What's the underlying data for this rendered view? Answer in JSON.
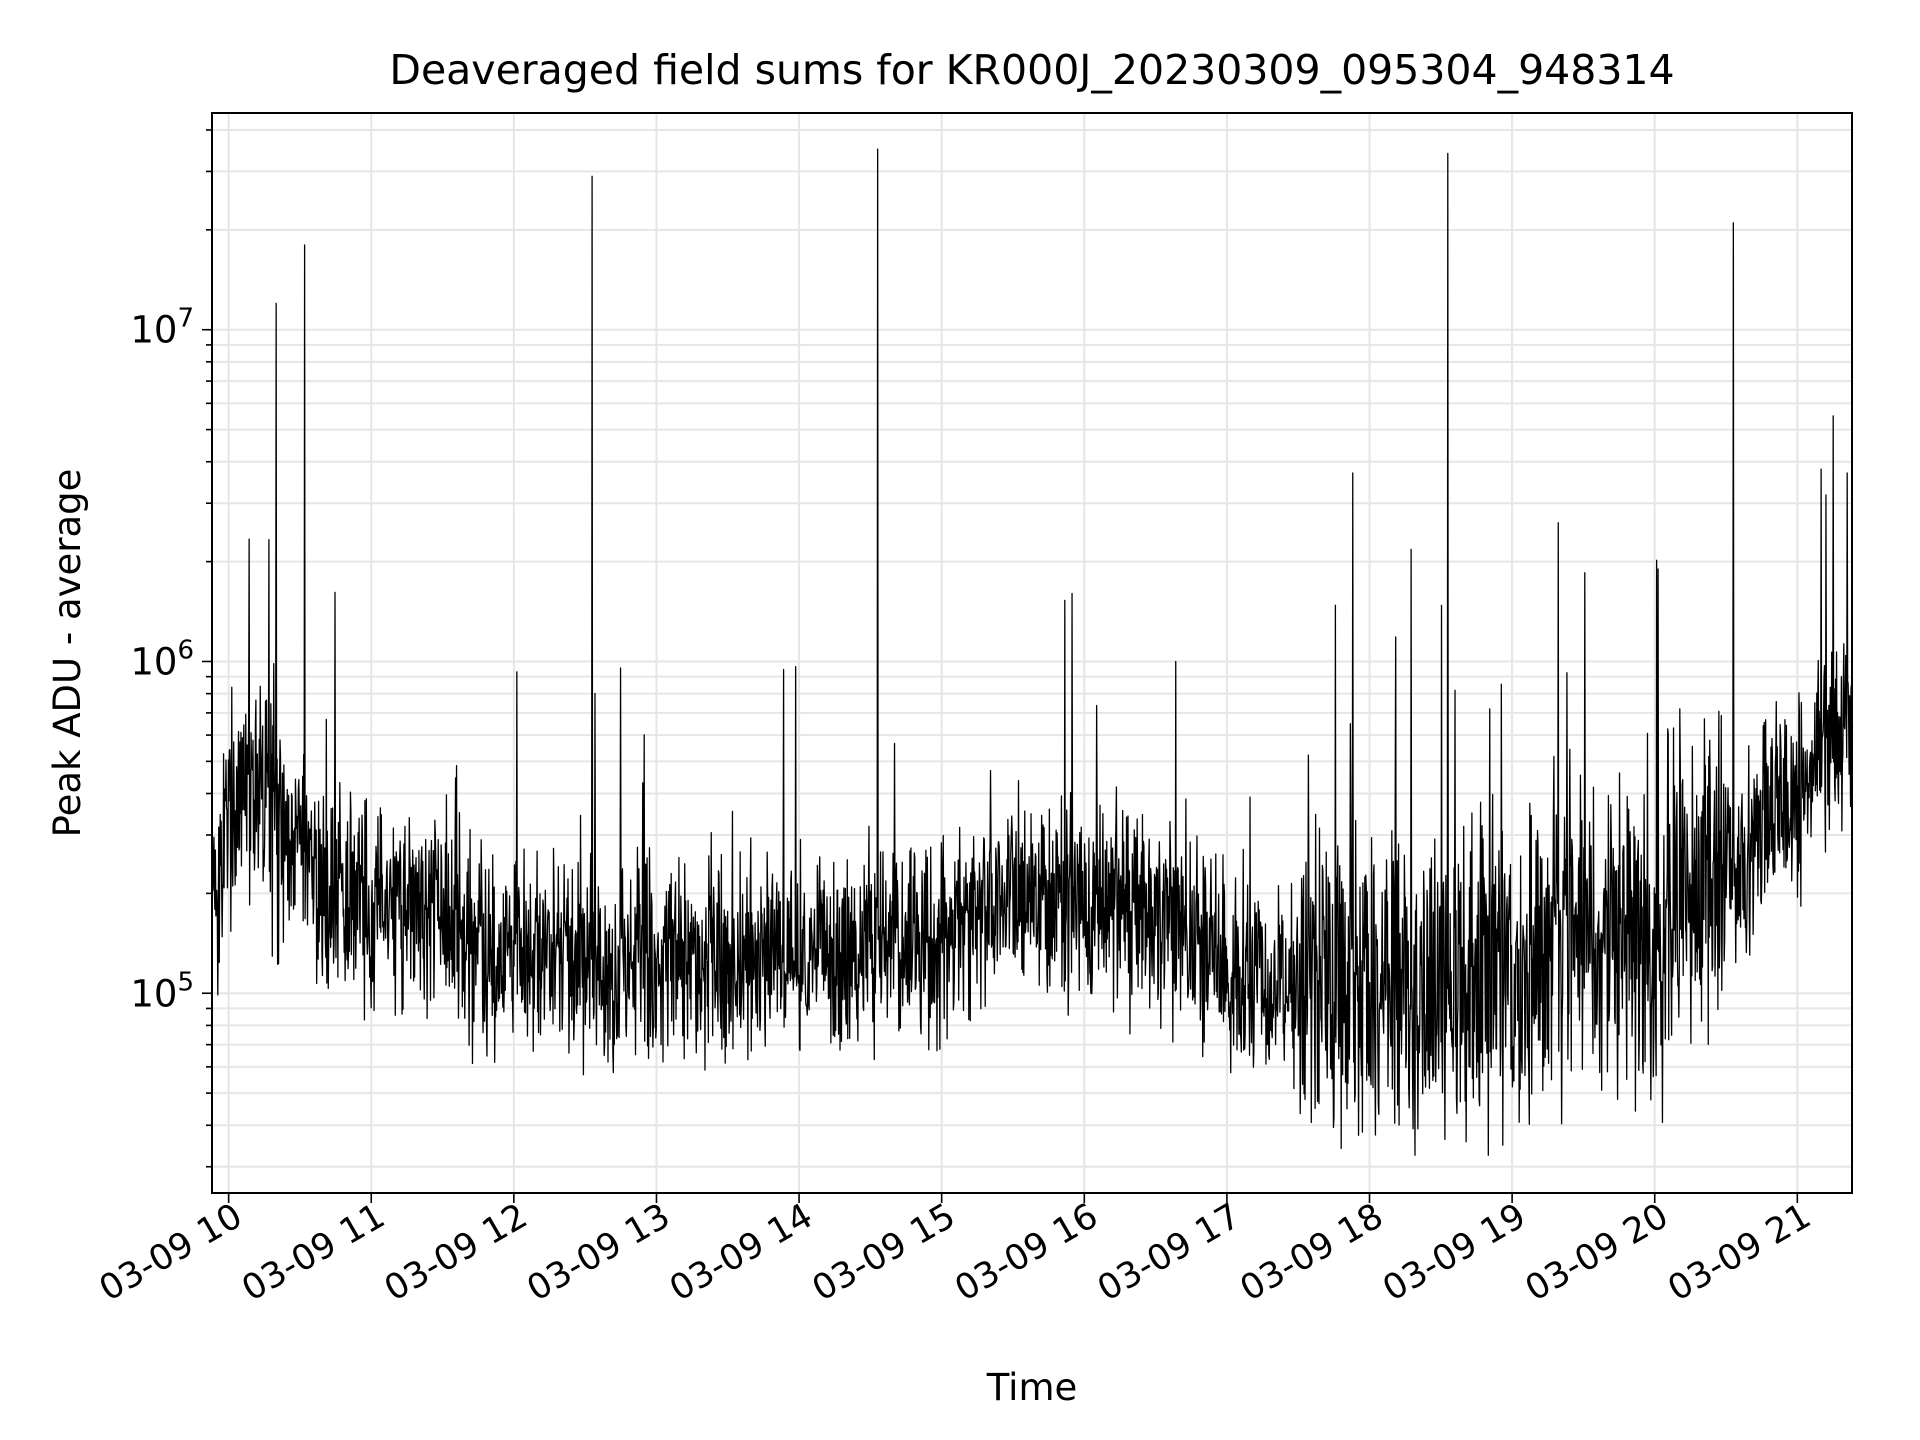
{
  "chart_data": {
    "type": "line",
    "title": "Deaveraged field sums for KR000J_20230309_095304_948314",
    "xlabel": "Time",
    "ylabel": "Peak ADU - average",
    "x_scale": "time",
    "y_scale": "log",
    "xlim": [
      "03-09 09:53",
      "03-09 21:23"
    ],
    "ylim": [
      25000,
      45000000
    ],
    "grid": true,
    "legend": "none",
    "x_ticks": [
      "03-09 10",
      "03-09 11",
      "03-09 12",
      "03-09 13",
      "03-09 14",
      "03-09 15",
      "03-09 16",
      "03-09 17",
      "03-09 18",
      "03-09 19",
      "03-09 20",
      "03-09 21"
    ],
    "y_ticks": [
      {
        "base": "10",
        "exp": "5",
        "value": 100000
      },
      {
        "base": "10",
        "exp": "6",
        "value": 1000000
      },
      {
        "base": "10",
        "exp": "7",
        "value": 10000000
      }
    ],
    "series": [
      {
        "color": "#000000",
        "baseline": [
          [
            "03-09 09:53",
            200000
          ],
          [
            "03-09 10:05",
            450000
          ],
          [
            "03-09 10:15",
            420000
          ],
          [
            "03-09 10:25",
            260000
          ],
          [
            "03-09 10:45",
            180000
          ],
          [
            "03-09 11:15",
            200000
          ],
          [
            "03-09 11:45",
            140000
          ],
          [
            "03-09 12:30",
            125000
          ],
          [
            "03-09 13:30",
            130000
          ],
          [
            "03-09 14:30",
            135000
          ],
          [
            "03-09 15:05",
            140000
          ],
          [
            "03-09 15:25",
            210000
          ],
          [
            "03-09 16:00",
            190000
          ],
          [
            "03-09 16:30",
            175000
          ],
          [
            "03-09 17:00",
            120000
          ],
          [
            "03-09 17:45",
            100000
          ],
          [
            "03-09 18:30",
            110000
          ],
          [
            "03-09 19:00",
            120000
          ],
          [
            "03-09 19:30",
            150000
          ],
          [
            "03-09 20:00",
            140000
          ],
          [
            "03-09 20:30",
            230000
          ],
          [
            "03-09 21:00",
            400000
          ],
          [
            "03-09 21:23",
            700000
          ]
        ],
        "spikes": [
          [
            "03-09 10:20",
            12000000
          ],
          [
            "03-09 10:32",
            18000000
          ],
          [
            "03-09 12:33",
            29000000
          ],
          [
            "03-09 14:33",
            35000000
          ],
          [
            "03-09 17:53",
            3700000
          ],
          [
            "03-09 18:33",
            34000000
          ],
          [
            "03-09 20:33",
            21000000
          ],
          [
            "03-09 21:15",
            5500000
          ],
          [
            "03-09 21:10",
            3800000
          ],
          [
            "03-09 21:21",
            3700000
          ]
        ]
      }
    ]
  }
}
